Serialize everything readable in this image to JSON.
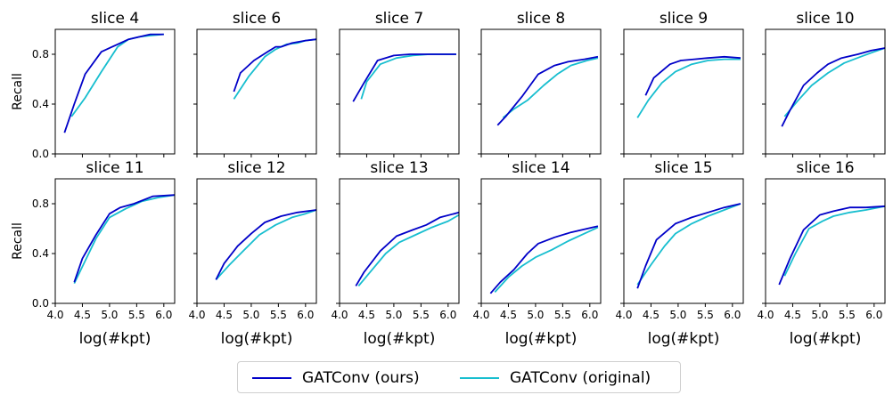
{
  "chart_data": {
    "type": "line",
    "xlabel": "log(#kpt)",
    "ylabel": "Recall",
    "xlim": [
      4.0,
      6.2
    ],
    "ylim": [
      0.0,
      1.0
    ],
    "xticks": [
      "4.0",
      "4.5",
      "5.0",
      "5.5",
      "6.0"
    ],
    "yticks": [
      "0.0",
      "0.4",
      "0.8"
    ],
    "series_styles": [
      {
        "name": "GATConv (ours)",
        "color": "#0000c8"
      },
      {
        "name": "GATConv (original)",
        "color": "#17becf"
      }
    ],
    "legend_position": "bottom-center",
    "panels": [
      {
        "title": "slice 4",
        "ours": [
          [
            4.17,
            0.17
          ],
          [
            4.35,
            0.4
          ],
          [
            4.55,
            0.64
          ],
          [
            4.85,
            0.82
          ],
          [
            5.15,
            0.88
          ],
          [
            5.35,
            0.92
          ],
          [
            5.55,
            0.94
          ],
          [
            5.75,
            0.96
          ],
          [
            6.0,
            0.96
          ]
        ],
        "original": [
          [
            4.3,
            0.3
          ],
          [
            4.55,
            0.45
          ],
          [
            4.85,
            0.66
          ],
          [
            5.15,
            0.86
          ],
          [
            5.35,
            0.92
          ],
          [
            5.55,
            0.94
          ],
          [
            5.75,
            0.95
          ],
          [
            6.0,
            0.96
          ]
        ]
      },
      {
        "title": "slice 6",
        "ours": [
          [
            4.68,
            0.5
          ],
          [
            4.8,
            0.65
          ],
          [
            5.05,
            0.75
          ],
          [
            5.3,
            0.82
          ],
          [
            5.45,
            0.86
          ],
          [
            5.55,
            0.86
          ],
          [
            5.75,
            0.89
          ],
          [
            6.0,
            0.91
          ],
          [
            6.2,
            0.92
          ]
        ],
        "original": [
          [
            4.68,
            0.44
          ],
          [
            4.95,
            0.62
          ],
          [
            5.25,
            0.78
          ],
          [
            5.45,
            0.84
          ],
          [
            5.65,
            0.88
          ],
          [
            5.85,
            0.89
          ],
          [
            6.0,
            0.91
          ],
          [
            6.2,
            0.92
          ]
        ]
      },
      {
        "title": "slice 7",
        "ours": [
          [
            4.25,
            0.42
          ],
          [
            4.45,
            0.57
          ],
          [
            4.7,
            0.75
          ],
          [
            5.0,
            0.79
          ],
          [
            5.3,
            0.8
          ],
          [
            5.6,
            0.8
          ],
          [
            6.0,
            0.8
          ],
          [
            6.15,
            0.8
          ]
        ],
        "original": [
          [
            4.4,
            0.44
          ],
          [
            4.5,
            0.58
          ],
          [
            4.75,
            0.72
          ],
          [
            5.05,
            0.77
          ],
          [
            5.35,
            0.79
          ],
          [
            5.65,
            0.8
          ],
          [
            6.0,
            0.8
          ],
          [
            6.15,
            0.8
          ]
        ]
      },
      {
        "title": "slice 8",
        "ours": [
          [
            4.3,
            0.23
          ],
          [
            4.45,
            0.3
          ],
          [
            4.75,
            0.46
          ],
          [
            5.05,
            0.64
          ],
          [
            5.35,
            0.71
          ],
          [
            5.6,
            0.74
          ],
          [
            5.9,
            0.76
          ],
          [
            6.15,
            0.78
          ]
        ],
        "original": [
          [
            4.4,
            0.29
          ],
          [
            4.6,
            0.36
          ],
          [
            4.85,
            0.43
          ],
          [
            5.15,
            0.55
          ],
          [
            5.4,
            0.64
          ],
          [
            5.65,
            0.71
          ],
          [
            5.95,
            0.75
          ],
          [
            6.15,
            0.77
          ]
        ]
      },
      {
        "title": "slice 9",
        "ours": [
          [
            4.4,
            0.47
          ],
          [
            4.55,
            0.61
          ],
          [
            4.85,
            0.72
          ],
          [
            5.05,
            0.75
          ],
          [
            5.3,
            0.76
          ],
          [
            5.55,
            0.77
          ],
          [
            5.85,
            0.78
          ],
          [
            6.15,
            0.77
          ]
        ],
        "original": [
          [
            4.25,
            0.29
          ],
          [
            4.45,
            0.43
          ],
          [
            4.7,
            0.57
          ],
          [
            4.95,
            0.66
          ],
          [
            5.25,
            0.72
          ],
          [
            5.55,
            0.75
          ],
          [
            5.85,
            0.76
          ],
          [
            6.15,
            0.76
          ]
        ]
      },
      {
        "title": "slice 10",
        "ours": [
          [
            4.3,
            0.22
          ],
          [
            4.45,
            0.35
          ],
          [
            4.7,
            0.55
          ],
          [
            4.95,
            0.65
          ],
          [
            5.15,
            0.72
          ],
          [
            5.4,
            0.77
          ],
          [
            5.7,
            0.8
          ],
          [
            5.95,
            0.83
          ],
          [
            6.2,
            0.85
          ]
        ],
        "original": [
          [
            4.35,
            0.3
          ],
          [
            4.6,
            0.43
          ],
          [
            4.85,
            0.55
          ],
          [
            5.15,
            0.65
          ],
          [
            5.45,
            0.73
          ],
          [
            5.75,
            0.78
          ],
          [
            6.0,
            0.82
          ],
          [
            6.2,
            0.85
          ]
        ]
      },
      {
        "title": "slice 11",
        "ours": [
          [
            4.35,
            0.17
          ],
          [
            4.5,
            0.36
          ],
          [
            4.75,
            0.55
          ],
          [
            5.0,
            0.72
          ],
          [
            5.2,
            0.77
          ],
          [
            5.45,
            0.8
          ],
          [
            5.8,
            0.86
          ],
          [
            6.2,
            0.87
          ]
        ],
        "original": [
          [
            4.35,
            0.16
          ],
          [
            4.55,
            0.34
          ],
          [
            4.75,
            0.52
          ],
          [
            5.0,
            0.69
          ],
          [
            5.3,
            0.76
          ],
          [
            5.6,
            0.82
          ],
          [
            5.9,
            0.85
          ],
          [
            6.2,
            0.87
          ]
        ]
      },
      {
        "title": "slice 12",
        "ours": [
          [
            4.35,
            0.19
          ],
          [
            4.5,
            0.32
          ],
          [
            4.75,
            0.46
          ],
          [
            5.0,
            0.56
          ],
          [
            5.25,
            0.65
          ],
          [
            5.55,
            0.7
          ],
          [
            5.85,
            0.73
          ],
          [
            6.2,
            0.75
          ]
        ],
        "original": [
          [
            4.35,
            0.19
          ],
          [
            4.6,
            0.31
          ],
          [
            4.85,
            0.42
          ],
          [
            5.15,
            0.55
          ],
          [
            5.45,
            0.63
          ],
          [
            5.75,
            0.69
          ],
          [
            6.0,
            0.72
          ],
          [
            6.2,
            0.75
          ]
        ]
      },
      {
        "title": "slice 13",
        "ours": [
          [
            4.3,
            0.14
          ],
          [
            4.45,
            0.25
          ],
          [
            4.75,
            0.42
          ],
          [
            5.05,
            0.54
          ],
          [
            5.35,
            0.59
          ],
          [
            5.6,
            0.63
          ],
          [
            5.85,
            0.69
          ],
          [
            6.2,
            0.73
          ]
        ],
        "original": [
          [
            4.35,
            0.14
          ],
          [
            4.6,
            0.27
          ],
          [
            4.85,
            0.4
          ],
          [
            5.1,
            0.49
          ],
          [
            5.4,
            0.55
          ],
          [
            5.7,
            0.61
          ],
          [
            6.0,
            0.66
          ],
          [
            6.2,
            0.71
          ]
        ]
      },
      {
        "title": "slice 14",
        "ours": [
          [
            4.17,
            0.08
          ],
          [
            4.35,
            0.17
          ],
          [
            4.6,
            0.27
          ],
          [
            4.85,
            0.4
          ],
          [
            5.05,
            0.48
          ],
          [
            5.35,
            0.53
          ],
          [
            5.65,
            0.57
          ],
          [
            6.15,
            0.62
          ]
        ],
        "original": [
          [
            4.25,
            0.09
          ],
          [
            4.5,
            0.21
          ],
          [
            4.75,
            0.3
          ],
          [
            5.0,
            0.37
          ],
          [
            5.3,
            0.43
          ],
          [
            5.6,
            0.5
          ],
          [
            5.9,
            0.56
          ],
          [
            6.15,
            0.61
          ]
        ]
      },
      {
        "title": "slice 15",
        "ours": [
          [
            4.25,
            0.12
          ],
          [
            4.4,
            0.3
          ],
          [
            4.6,
            0.51
          ],
          [
            4.95,
            0.64
          ],
          [
            5.25,
            0.69
          ],
          [
            5.55,
            0.73
          ],
          [
            5.85,
            0.77
          ],
          [
            6.15,
            0.8
          ]
        ],
        "original": [
          [
            4.25,
            0.15
          ],
          [
            4.5,
            0.31
          ],
          [
            4.75,
            0.46
          ],
          [
            4.95,
            0.56
          ],
          [
            5.25,
            0.64
          ],
          [
            5.55,
            0.7
          ],
          [
            5.85,
            0.75
          ],
          [
            6.15,
            0.8
          ]
        ]
      },
      {
        "title": "slice 16",
        "ours": [
          [
            4.25,
            0.15
          ],
          [
            4.45,
            0.36
          ],
          [
            4.7,
            0.59
          ],
          [
            5.0,
            0.71
          ],
          [
            5.25,
            0.74
          ],
          [
            5.55,
            0.77
          ],
          [
            5.85,
            0.77
          ],
          [
            6.2,
            0.78
          ]
        ],
        "original": [
          [
            4.35,
            0.22
          ],
          [
            4.55,
            0.4
          ],
          [
            4.8,
            0.6
          ],
          [
            5.05,
            0.66
          ],
          [
            5.25,
            0.7
          ],
          [
            5.55,
            0.73
          ],
          [
            5.85,
            0.75
          ],
          [
            6.2,
            0.78
          ]
        ]
      }
    ]
  }
}
